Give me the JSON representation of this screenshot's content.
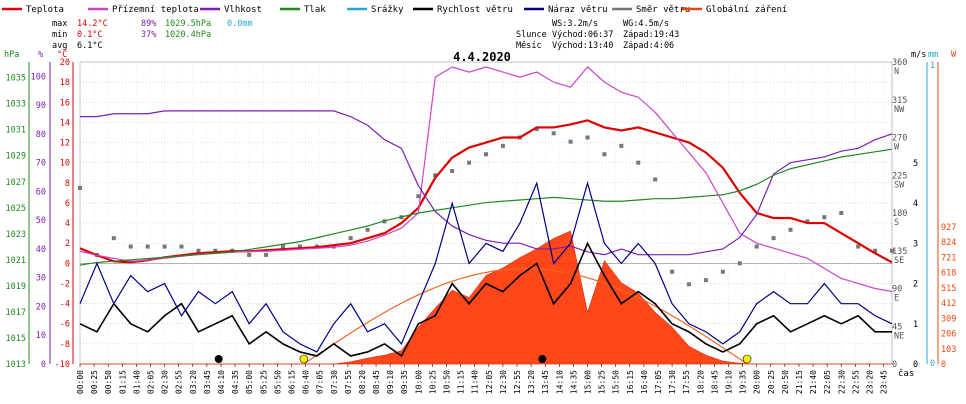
{
  "chart_data": {
    "type": "line",
    "title": "4.4.2020",
    "legend": [
      {
        "name": "Teplota",
        "color": "#dd0000"
      },
      {
        "name": "Přízemní teplota",
        "color": "#cc44cc"
      },
      {
        "name": "Vlhkost",
        "color": "#7a1fb0"
      },
      {
        "name": "Tlak",
        "color": "#228822"
      },
      {
        "name": "Srážky",
        "color": "#22aacc"
      },
      {
        "name": "Rychlost větru",
        "color": "#000000"
      },
      {
        "name": "Náraz větru",
        "color": "#000088"
      },
      {
        "name": "Směr větru",
        "color": "#777777"
      },
      {
        "name": "Globální záření",
        "color": "#ee4411"
      }
    ],
    "stats": {
      "max": {
        "label": "max",
        "temp": "14.2°C",
        "hum": "89%",
        "press": "1029.5hPa",
        "rain": "0.0mm"
      },
      "min": {
        "label": "min",
        "temp": "0.1°C",
        "hum": "37%",
        "press": "1020.4hPa"
      },
      "avg": {
        "label": "avg",
        "temp": "6.1°C"
      }
    },
    "info": {
      "ws": "WS:3.2m/s",
      "wg": "WG:4.5m/s",
      "sun_label": "Slunce",
      "sun_rise": "Východ:06:37",
      "sun_set": "Západ:19:43",
      "moon_label": "Měsíc",
      "moon_rise": "Východ:13:40",
      "moon_set": "Západ:4:06"
    },
    "axes": {
      "hpa": {
        "label": "hPa",
        "color": "#228822",
        "ticks": [
          "1035",
          "1033",
          "1031",
          "1029",
          "1027",
          "1025",
          "1023",
          "1021",
          "1019",
          "1017",
          "1015",
          "1013"
        ]
      },
      "pct": {
        "label": "%",
        "color": "#7a1fb0",
        "ticks": [
          "100",
          "90",
          "80",
          "70",
          "60",
          "50",
          "40",
          "30",
          "20",
          "10",
          "0"
        ]
      },
      "temp": {
        "label": "°C",
        "color": "#dd0000",
        "ticks": [
          "20",
          "18",
          "16",
          "14",
          "12",
          "10",
          "8",
          "6",
          "4",
          "2",
          "0",
          "-2",
          "-4",
          "-6",
          "-8",
          "-10"
        ],
        "range": [
          -10,
          20
        ]
      },
      "dir": {
        "label": "",
        "ticks": [
          "360",
          "N",
          "315",
          "NW",
          "270",
          "W",
          "225",
          "SW",
          "180",
          "S",
          "135",
          "SE",
          "90",
          "E",
          "45",
          "NE",
          "0"
        ]
      },
      "ms": {
        "label": "m/s",
        "color": "#000000",
        "ticks": [
          "5",
          "4",
          "3",
          "2",
          "1",
          "0"
        ]
      },
      "mm": {
        "label": "mm",
        "color": "#22aacc",
        "ticks": [
          "1",
          "0"
        ]
      },
      "w": {
        "label": "W",
        "color": "#ee4411",
        "ticks": [
          "927",
          "824",
          "721",
          "618",
          "515",
          "412",
          "309",
          "206",
          "103",
          "0"
        ]
      },
      "time": {
        "unit": "čas",
        "ticks": [
          "00:00",
          "00:25",
          "00:50",
          "01:15",
          "01:40",
          "02:05",
          "02:30",
          "02:55",
          "03:20",
          "03:45",
          "04:10",
          "04:35",
          "05:00",
          "05:25",
          "05:50",
          "06:15",
          "06:40",
          "07:05",
          "07:30",
          "07:55",
          "08:20",
          "08:45",
          "09:10",
          "09:35",
          "10:00",
          "10:25",
          "10:50",
          "11:15",
          "11:40",
          "12:05",
          "12:30",
          "12:55",
          "13:20",
          "13:45",
          "14:10",
          "14:35",
          "15:00",
          "15:25",
          "15:50",
          "16:15",
          "16:40",
          "17:05",
          "17:30",
          "17:55",
          "18:20",
          "18:45",
          "19:10",
          "19:35",
          "20:00",
          "20:25",
          "20:50",
          "21:15",
          "21:40",
          "22:05",
          "22:30",
          "22:55",
          "23:20",
          "23:45"
        ]
      }
    },
    "x_hours": [
      0,
      0.5,
      1,
      1.5,
      2,
      2.5,
      3,
      3.5,
      4,
      4.5,
      5,
      5.5,
      6,
      6.5,
      7,
      7.5,
      8,
      8.5,
      9,
      9.5,
      10,
      10.5,
      11,
      11.5,
      12,
      12.5,
      13,
      13.5,
      14,
      14.5,
      15,
      15.5,
      16,
      16.5,
      17,
      17.5,
      18,
      18.5,
      19,
      19.5,
      20,
      20.5,
      21,
      21.5,
      22,
      22.5,
      23,
      23.5,
      24
    ],
    "series": [
      {
        "name": "Teplota",
        "axis": "temp",
        "values": [
          1.5,
          0.8,
          0.2,
          0.1,
          0.3,
          0.6,
          0.8,
          1.0,
          1.1,
          1.2,
          1.2,
          1.3,
          1.4,
          1.5,
          1.6,
          1.8,
          2.0,
          2.5,
          3.0,
          4.0,
          5.5,
          8.5,
          10.5,
          11.5,
          12.0,
          12.5,
          12.5,
          13.5,
          13.5,
          13.8,
          14.2,
          13.5,
          13.2,
          13.5,
          13.0,
          12.5,
          12.0,
          11.0,
          9.5,
          7.0,
          5.0,
          4.5,
          4.5,
          4.0,
          4.0,
          3.0,
          2.0,
          1.0,
          0.1
        ]
      },
      {
        "name": "Přízemní teplota",
        "axis": "temp",
        "values": [
          1.2,
          0.8,
          0.5,
          0.2,
          0.3,
          0.5,
          0.7,
          0.9,
          1.0,
          1.1,
          1.2,
          1.2,
          1.3,
          1.4,
          1.5,
          1.6,
          1.8,
          2.2,
          2.8,
          3.5,
          5.0,
          18.5,
          19.5,
          19.0,
          19.5,
          19.0,
          18.5,
          19.0,
          18.0,
          17.5,
          19.5,
          18.0,
          17.0,
          16.5,
          15.0,
          13.0,
          11.0,
          9.0,
          6.0,
          3.0,
          2.0,
          1.5,
          1.0,
          0.5,
          -0.5,
          -1.5,
          -2.0,
          -2.5,
          -2.8
        ]
      },
      {
        "name": "Vlhkost",
        "axis": "pct",
        "values": [
          86,
          86,
          87,
          87,
          87,
          88,
          88,
          88,
          88,
          88,
          88,
          88,
          88,
          88,
          88,
          88,
          86,
          83,
          78,
          75,
          62,
          53,
          48,
          45,
          43,
          42,
          42,
          40,
          40,
          41,
          39,
          38,
          40,
          38,
          38,
          38,
          38,
          39,
          40,
          44,
          52,
          66,
          70,
          71,
          72,
          74,
          75,
          78,
          80
        ]
      },
      {
        "name": "Tlak",
        "axis": "hpa",
        "values": [
          1020.6,
          1020.8,
          1020.9,
          1021.0,
          1021.1,
          1021.2,
          1021.3,
          1021.4,
          1021.5,
          1021.6,
          1021.8,
          1022.0,
          1022.2,
          1022.4,
          1022.7,
          1023.0,
          1023.3,
          1023.6,
          1024.0,
          1024.3,
          1024.6,
          1024.8,
          1025.0,
          1025.2,
          1025.4,
          1025.5,
          1025.6,
          1025.7,
          1025.8,
          1025.7,
          1025.6,
          1025.5,
          1025.5,
          1025.6,
          1025.7,
          1025.7,
          1025.8,
          1025.9,
          1026.0,
          1026.3,
          1026.8,
          1027.5,
          1028.0,
          1028.3,
          1028.6,
          1028.9,
          1029.1,
          1029.3,
          1029.5
        ]
      },
      {
        "name": "Rychlost větru",
        "axis": "ms",
        "values": [
          1.0,
          0.8,
          1.5,
          1.0,
          0.8,
          1.2,
          1.5,
          0.8,
          1.0,
          1.2,
          0.5,
          0.8,
          0.5,
          0.3,
          0.2,
          0.5,
          0.2,
          0.3,
          0.5,
          0.2,
          1.0,
          1.2,
          2.0,
          1.5,
          2.0,
          1.8,
          2.2,
          2.5,
          1.5,
          2.0,
          3.0,
          2.2,
          1.5,
          1.8,
          1.5,
          1.0,
          0.8,
          0.5,
          0.3,
          0.5,
          1.0,
          1.2,
          0.8,
          1.0,
          1.2,
          1.0,
          1.2,
          0.8,
          0.8
        ]
      },
      {
        "name": "Náraz větru",
        "axis": "ms",
        "values": [
          1.5,
          2.5,
          1.5,
          2.2,
          1.8,
          2.0,
          1.2,
          1.8,
          1.5,
          1.8,
          1.0,
          1.5,
          0.8,
          0.5,
          0.3,
          1.0,
          1.5,
          0.8,
          1.0,
          0.5,
          1.5,
          2.5,
          4.0,
          2.5,
          3.0,
          2.8,
          3.5,
          4.5,
          2.5,
          3.0,
          4.5,
          3.0,
          2.5,
          3.0,
          2.5,
          1.5,
          1.0,
          0.8,
          0.5,
          0.8,
          1.5,
          1.8,
          1.5,
          1.5,
          2.0,
          1.5,
          1.5,
          1.2,
          1.0
        ]
      },
      {
        "name": "Globální záření",
        "axis": "w",
        "values": [
          0,
          0,
          0,
          0,
          0,
          0,
          0,
          0,
          0,
          0,
          0,
          0,
          0,
          0,
          0,
          0,
          15,
          40,
          60,
          90,
          250,
          380,
          500,
          450,
          600,
          650,
          720,
          780,
          850,
          900,
          350,
          700,
          550,
          480,
          350,
          250,
          120,
          60,
          20,
          5,
          0,
          0,
          0,
          0,
          0,
          0,
          0,
          0,
          0
        ]
      }
    ],
    "wind_direction_deg": [
      210,
      130,
      150,
      140,
      140,
      140,
      140,
      135,
      135,
      135,
      130,
      130,
      140,
      140,
      140,
      140,
      150,
      160,
      170,
      175,
      200,
      225,
      230,
      240,
      250,
      260,
      270,
      280,
      275,
      265,
      270,
      250,
      260,
      240,
      220,
      110,
      95,
      100,
      110,
      120,
      140,
      150,
      160,
      170,
      175,
      180,
      140,
      135,
      135
    ],
    "clear_sky_radiation": {
      "axis": "w",
      "peak_time": "13:10",
      "peak_value": 645,
      "start": "06:37",
      "end": "19:43"
    },
    "sun_markers": [
      {
        "time": "06:37",
        "color": "#ffee00"
      },
      {
        "time": "19:43",
        "color": "#ffee00"
      }
    ],
    "moon_markers": [
      {
        "time": "04:06",
        "color": "#000000"
      },
      {
        "time": "13:40",
        "color": "#000000"
      }
    ]
  }
}
